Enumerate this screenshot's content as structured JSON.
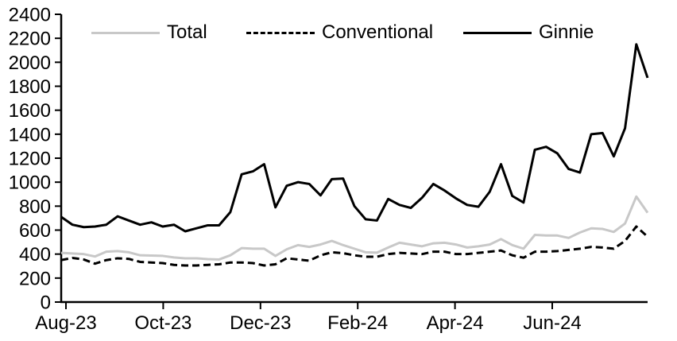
{
  "chart_data": {
    "type": "line",
    "title": "",
    "xlabel": "",
    "ylabel": "",
    "x_unit": "weekly observations, Aug-2023 to Aug-2024",
    "x_tick_labels": [
      "Aug-23",
      "Oct-23",
      "Dec-23",
      "Feb-24",
      "Apr-24",
      "Jun-24"
    ],
    "y_ticks": [
      0,
      200,
      400,
      600,
      800,
      1000,
      1200,
      1400,
      1600,
      1800,
      2000,
      2200,
      2400
    ],
    "ylim": [
      0,
      2400
    ],
    "grid": "off",
    "legend_position": "top",
    "series": [
      {
        "name": "Total",
        "color": "#c8c8c8",
        "style": "solid",
        "values": [
          410,
          405,
          400,
          380,
          420,
          425,
          415,
          390,
          388,
          385,
          372,
          365,
          365,
          358,
          355,
          390,
          450,
          445,
          445,
          385,
          440,
          475,
          460,
          480,
          510,
          475,
          445,
          415,
          412,
          455,
          495,
          480,
          465,
          490,
          495,
          480,
          455,
          465,
          480,
          525,
          475,
          445,
          560,
          555,
          555,
          535,
          580,
          615,
          610,
          585,
          655,
          880,
          745
        ]
      },
      {
        "name": "Conventional",
        "color": "#000000",
        "style": "dashed",
        "values": [
          350,
          368,
          355,
          320,
          350,
          365,
          360,
          335,
          330,
          325,
          310,
          305,
          305,
          310,
          315,
          330,
          330,
          325,
          305,
          315,
          365,
          355,
          345,
          390,
          415,
          408,
          390,
          378,
          378,
          400,
          410,
          405,
          400,
          420,
          420,
          400,
          400,
          410,
          420,
          430,
          390,
          370,
          420,
          420,
          425,
          435,
          445,
          460,
          455,
          445,
          510,
          630,
          545
        ]
      },
      {
        "name": "Ginnie",
        "color": "#000000",
        "style": "solid",
        "values": [
          710,
          645,
          625,
          630,
          645,
          715,
          680,
          645,
          665,
          630,
          645,
          590,
          615,
          640,
          640,
          750,
          1065,
          1090,
          1150,
          790,
          970,
          1000,
          985,
          890,
          1025,
          1030,
          800,
          690,
          680,
          860,
          810,
          785,
          870,
          985,
          930,
          865,
          810,
          795,
          920,
          1150,
          885,
          830,
          1270,
          1295,
          1240,
          1110,
          1080,
          1400,
          1410,
          1215,
          1450,
          2150,
          1870
        ]
      }
    ]
  }
}
